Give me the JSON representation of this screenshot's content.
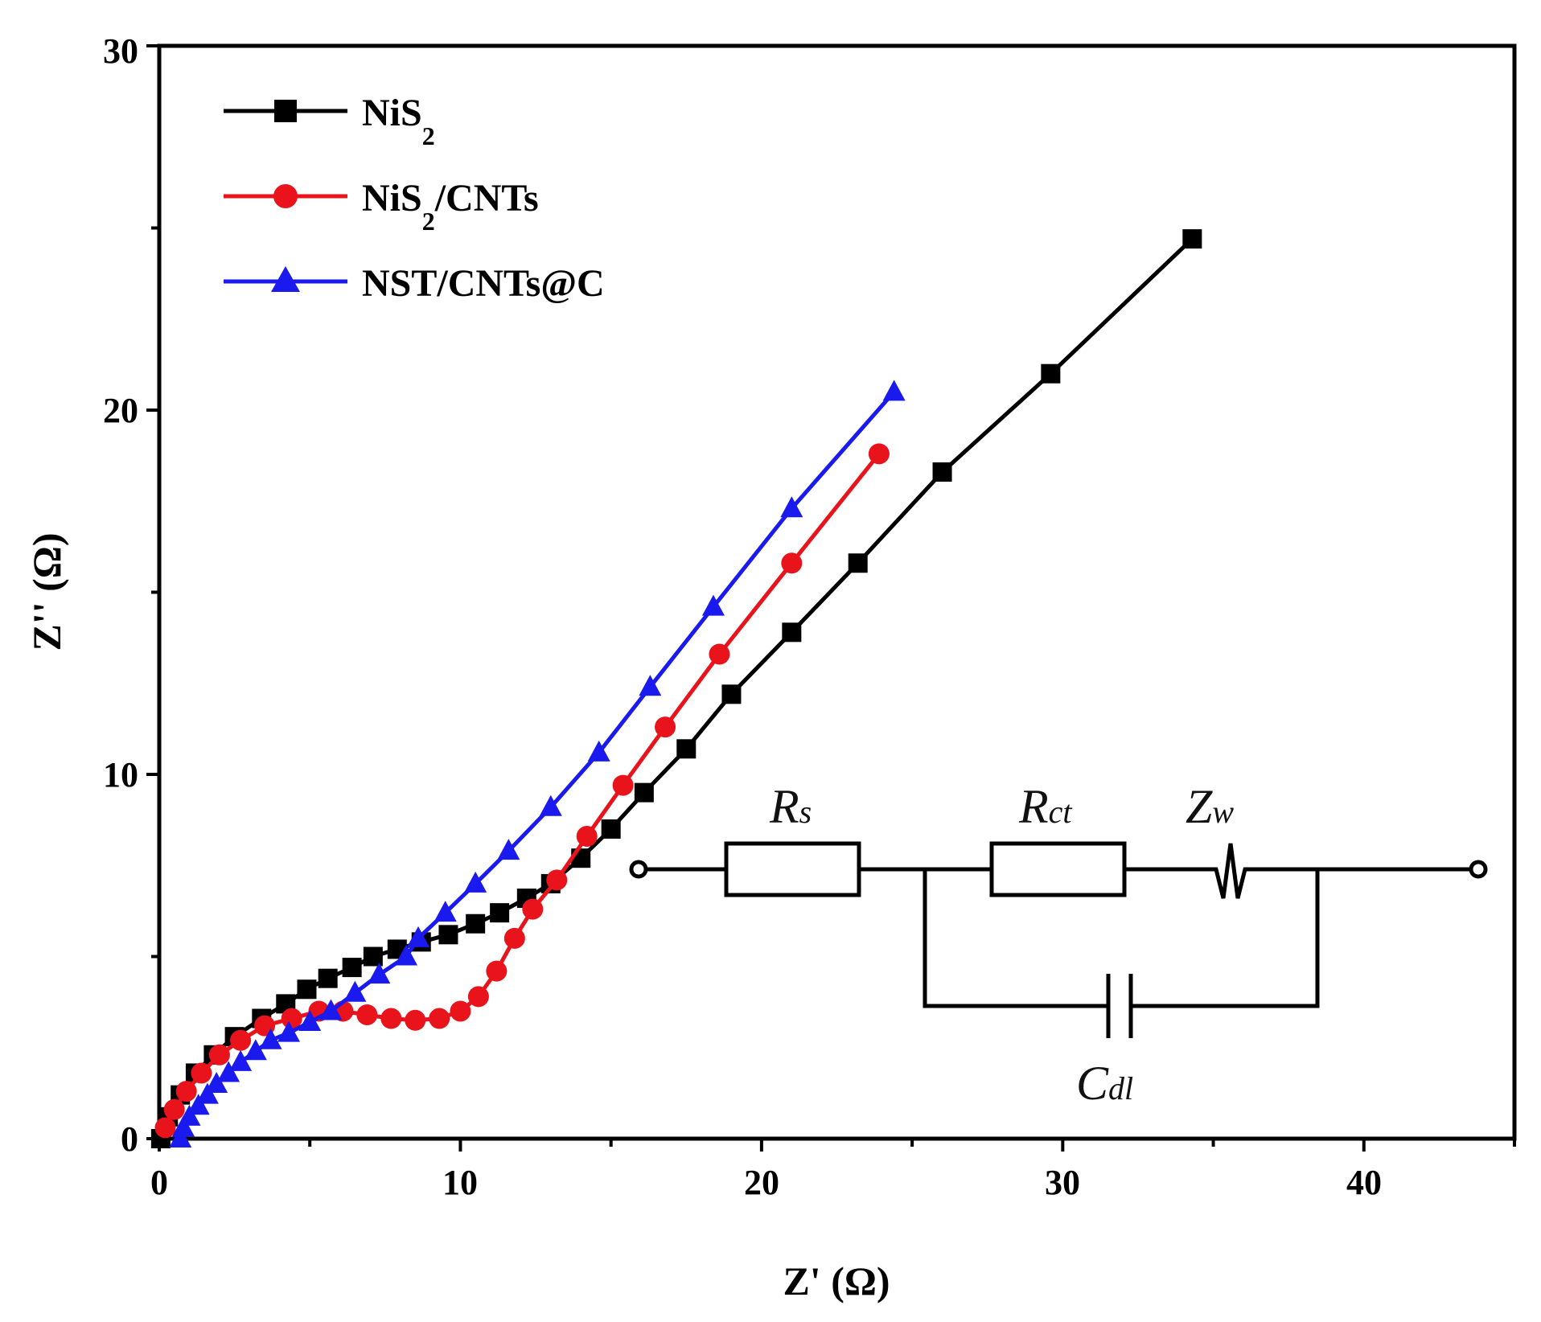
{
  "chart_data": {
    "type": "line",
    "title": "",
    "xlabel": "Z' (Ω)",
    "ylabel": "Z'' (Ω)",
    "xlim": [
      0,
      45
    ],
    "ylim": [
      0,
      30
    ],
    "xticks": [
      "0",
      "10",
      "20",
      "30",
      "40"
    ],
    "yticks": [
      "0",
      "10",
      "20",
      "30"
    ],
    "legend_position": "top-left",
    "series": [
      {
        "name": "NiS2",
        "label_main": "NiS",
        "label_sub": "2",
        "label_rest": "",
        "color": "#000000",
        "marker": "square",
        "points": [
          [
            0.05,
            0.0
          ],
          [
            0.3,
            0.6
          ],
          [
            0.7,
            1.2
          ],
          [
            1.2,
            1.8
          ],
          [
            1.8,
            2.3
          ],
          [
            2.5,
            2.8
          ],
          [
            3.4,
            3.3
          ],
          [
            4.2,
            3.7
          ],
          [
            4.9,
            4.1
          ],
          [
            5.6,
            4.4
          ],
          [
            6.4,
            4.7
          ],
          [
            7.1,
            5.0
          ],
          [
            7.9,
            5.2
          ],
          [
            8.7,
            5.4
          ],
          [
            9.6,
            5.6
          ],
          [
            10.5,
            5.9
          ],
          [
            11.3,
            6.2
          ],
          [
            12.2,
            6.6
          ],
          [
            13.0,
            7.0
          ],
          [
            14.0,
            7.7
          ],
          [
            15.0,
            8.5
          ],
          [
            16.1,
            9.5
          ],
          [
            17.5,
            10.7
          ],
          [
            19.0,
            12.2
          ],
          [
            21.0,
            13.9
          ],
          [
            23.2,
            15.8
          ],
          [
            26.0,
            18.3
          ],
          [
            29.6,
            21.0
          ],
          [
            34.3,
            24.7
          ]
        ]
      },
      {
        "name": "NiS2/CNTs",
        "label_main": "NiS",
        "label_sub": "2",
        "label_rest": "/CNTs",
        "color": "#e8131b",
        "marker": "circle",
        "points": [
          [
            0.2,
            0.3
          ],
          [
            0.5,
            0.8
          ],
          [
            0.9,
            1.3
          ],
          [
            1.4,
            1.8
          ],
          [
            2.0,
            2.3
          ],
          [
            2.7,
            2.7
          ],
          [
            3.5,
            3.1
          ],
          [
            4.4,
            3.3
          ],
          [
            5.3,
            3.5
          ],
          [
            6.1,
            3.5
          ],
          [
            6.9,
            3.4
          ],
          [
            7.7,
            3.3
          ],
          [
            8.5,
            3.25
          ],
          [
            9.3,
            3.3
          ],
          [
            10.0,
            3.5
          ],
          [
            10.6,
            3.9
          ],
          [
            11.2,
            4.6
          ],
          [
            11.8,
            5.5
          ],
          [
            12.4,
            6.3
          ],
          [
            13.2,
            7.1
          ],
          [
            14.2,
            8.3
          ],
          [
            15.4,
            9.7
          ],
          [
            16.8,
            11.3
          ],
          [
            18.6,
            13.3
          ],
          [
            21.0,
            15.8
          ],
          [
            23.9,
            18.8
          ]
        ]
      },
      {
        "name": "NST/CNTs@C",
        "label_main": "NST/CNTs@C",
        "label_sub": "",
        "label_rest": "",
        "color": "#1a1aee",
        "marker": "triangle",
        "points": [
          [
            0.7,
            0.0
          ],
          [
            0.8,
            0.3
          ],
          [
            1.0,
            0.6
          ],
          [
            1.3,
            0.9
          ],
          [
            1.6,
            1.2
          ],
          [
            1.9,
            1.5
          ],
          [
            2.3,
            1.8
          ],
          [
            2.7,
            2.1
          ],
          [
            3.2,
            2.4
          ],
          [
            3.7,
            2.7
          ],
          [
            4.3,
            2.9
          ],
          [
            5.0,
            3.2
          ],
          [
            5.7,
            3.5
          ],
          [
            6.5,
            4.0
          ],
          [
            7.3,
            4.5
          ],
          [
            8.2,
            5.0
          ],
          [
            8.6,
            5.5
          ],
          [
            9.5,
            6.2
          ],
          [
            10.5,
            7.0
          ],
          [
            11.6,
            7.9
          ],
          [
            13.0,
            9.1
          ],
          [
            14.6,
            10.6
          ],
          [
            16.3,
            12.4
          ],
          [
            18.4,
            14.6
          ],
          [
            21.0,
            17.3
          ],
          [
            24.4,
            20.5
          ]
        ]
      }
    ]
  },
  "circuit": {
    "rs_main": "R",
    "rs_sub": "s",
    "rct_main": "R",
    "rct_sub": "ct",
    "zw_main": "Z",
    "zw_sub": "w",
    "cdl_main": "C",
    "cdl_sub": "dl"
  }
}
